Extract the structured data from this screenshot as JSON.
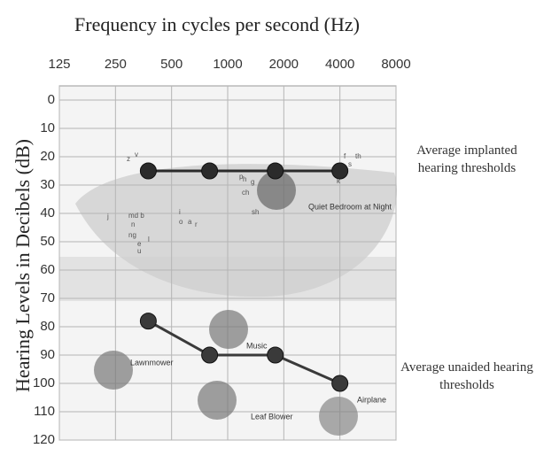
{
  "chart_data": {
    "type": "line",
    "title": "Frequency in cycles per second (Hz)",
    "y_label": "Hearing Levels in Decibels (dB)",
    "x_scale": "log",
    "xlim": [
      125,
      8000
    ],
    "xticks": [
      125,
      250,
      500,
      1000,
      2000,
      4000,
      8000
    ],
    "ylim": [
      -5,
      120
    ],
    "yticks": [
      0,
      10,
      20,
      30,
      40,
      50,
      60,
      70,
      80,
      90,
      100,
      110,
      120
    ],
    "y_reversed": true,
    "grid": true,
    "x": [
      375,
      800,
      1800,
      4000
    ],
    "series": [
      {
        "name": "Average implanted hearing thresholds",
        "color": "#2b2b2b",
        "values": [
          25,
          25,
          25,
          25
        ]
      },
      {
        "name": "Average unaided hearing thresholds",
        "color": "#3a3a3a",
        "values": [
          78,
          90,
          90,
          100
        ]
      }
    ],
    "annotations": [
      "Quiet Bedroom at Night",
      "Lawnmower",
      "Music",
      "Leaf Blower",
      "Airplane",
      "z",
      "v",
      "j",
      "md b",
      "n",
      "ng",
      "e",
      "u",
      "l",
      "i",
      "o",
      "a",
      "r",
      "p",
      "h",
      "g",
      "ch",
      "sh",
      "k",
      "f",
      "th",
      "s"
    ]
  }
}
